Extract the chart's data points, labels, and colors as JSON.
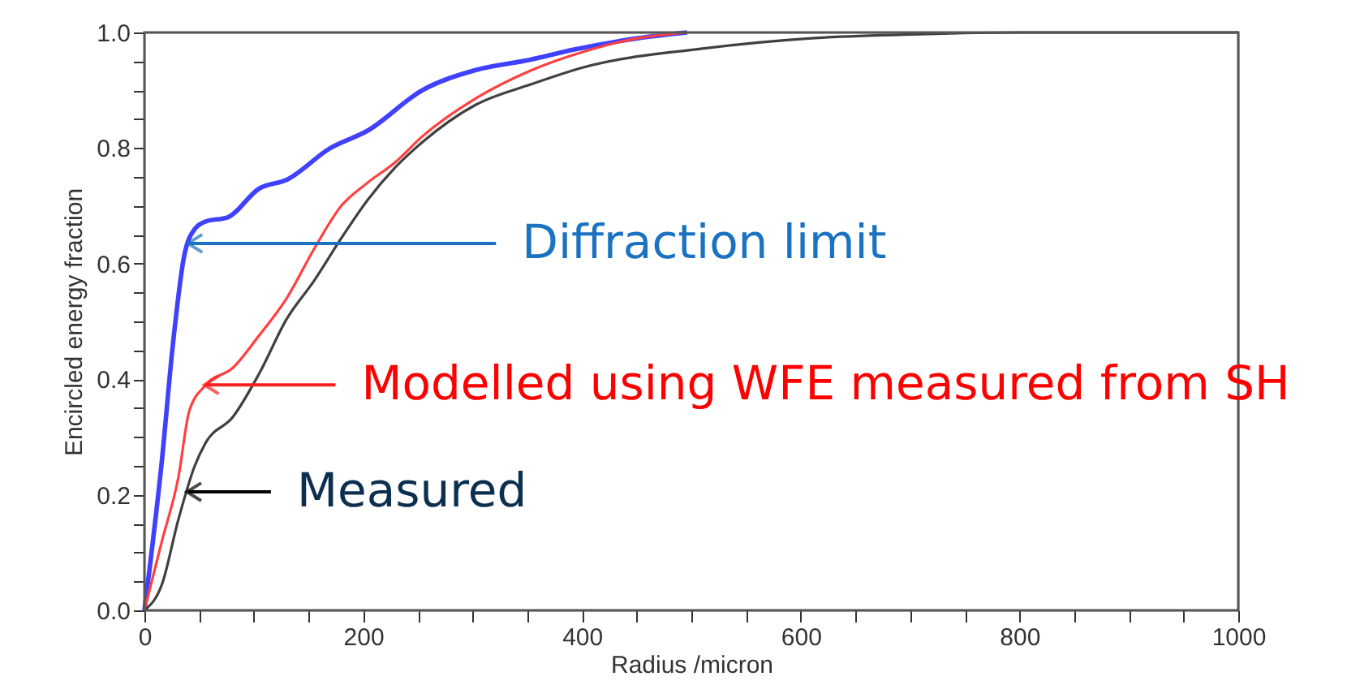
{
  "chart_data": {
    "type": "line",
    "xlabel": "Radius /micron",
    "ylabel": "Encircled energy fraction",
    "xlim": [
      0,
      1000
    ],
    "ylim": [
      0,
      1.0
    ],
    "xticks": [
      0,
      {
        "value": 50,
        "label": null
      },
      {
        "value": 100,
        "label": null
      },
      {
        "value": 150,
        "label": null
      },
      200,
      {
        "value": 250,
        "label": null
      },
      {
        "value": 300,
        "label": null
      },
      {
        "value": 350,
        "label": null
      },
      400,
      {
        "value": 450,
        "label": null
      },
      {
        "value": 500,
        "label": null
      },
      {
        "value": 550,
        "label": null
      },
      600,
      {
        "value": 650,
        "label": null
      },
      {
        "value": 700,
        "label": null
      },
      {
        "value": 750,
        "label": null
      },
      800,
      {
        "value": 850,
        "label": null
      },
      {
        "value": 900,
        "label": null
      },
      {
        "value": 950,
        "label": null
      },
      1000
    ],
    "yticks": [
      {
        "value": 0,
        "label": "0.0"
      },
      {
        "value": 0.05,
        "label": null
      },
      {
        "value": 0.1,
        "label": null
      },
      {
        "value": 0.15,
        "label": null
      },
      {
        "value": 0.2,
        "label": "0.2"
      },
      {
        "value": 0.25,
        "label": null
      },
      {
        "value": 0.3,
        "label": null
      },
      {
        "value": 0.35,
        "label": null
      },
      {
        "value": 0.4,
        "label": "0.4"
      },
      {
        "value": 0.45,
        "label": null
      },
      {
        "value": 0.5,
        "label": null
      },
      {
        "value": 0.55,
        "label": null
      },
      {
        "value": 0.6,
        "label": "0.6"
      },
      {
        "value": 0.65,
        "label": null
      },
      {
        "value": 0.7,
        "label": null
      },
      {
        "value": 0.75,
        "label": null
      },
      {
        "value": 0.8,
        "label": "0.8"
      },
      {
        "value": 0.85,
        "label": null
      },
      {
        "value": 0.9,
        "label": null
      },
      {
        "value": 0.95,
        "label": null
      },
      {
        "value": 1.0,
        "label": "1.0"
      }
    ],
    "grid": false,
    "marker": "none",
    "line_style": "solid",
    "series": [
      {
        "color": "#4040ff",
        "x": [
          0,
          16,
          26,
          36,
          46,
          56,
          76,
          105,
          130,
          170,
          204,
          254,
          303,
          353,
          392,
          451,
          496
        ],
        "values": [
          0,
          0.26,
          0.46,
          0.61,
          0.66,
          0.673,
          0.68,
          0.73,
          0.745,
          0.8,
          0.83,
          0.9,
          0.935,
          0.953,
          0.97,
          0.99,
          1.0
        ]
      },
      {
        "color": "#ff4040",
        "x": [
          0,
          16,
          31,
          41,
          56,
          81,
          105,
          130,
          155,
          180,
          204,
          229,
          254,
          303,
          353,
          402,
          451,
          496
        ],
        "values": [
          0,
          0.12,
          0.23,
          0.345,
          0.39,
          0.42,
          0.476,
          0.54,
          0.625,
          0.7,
          0.74,
          0.775,
          0.82,
          0.886,
          0.934,
          0.967,
          0.99,
          1.0
        ]
      },
      {
        "color": "#404040",
        "x": [
          0,
          16,
          31,
          46,
          56,
          81,
          105,
          130,
          155,
          180,
          204,
          229,
          254,
          303,
          353,
          402,
          510,
          610,
          709,
          802,
          900,
          1000
        ],
        "values": [
          0,
          0.045,
          0.157,
          0.25,
          0.29,
          0.335,
          0.41,
          0.504,
          0.57,
          0.644,
          0.71,
          0.766,
          0.81,
          0.875,
          0.91,
          0.94,
          0.972,
          0.99,
          0.997,
          1.0,
          1.0,
          1.0
        ]
      }
    ],
    "annotations": [
      {
        "text": "Diffraction limit",
        "x": 41,
        "y": 0.635
      },
      {
        "text": "Modelled using WFE measured from SH",
        "x": 56,
        "y": 0.39
      },
      {
        "text": "Measured",
        "x": 40,
        "y": 0.205
      }
    ]
  }
}
